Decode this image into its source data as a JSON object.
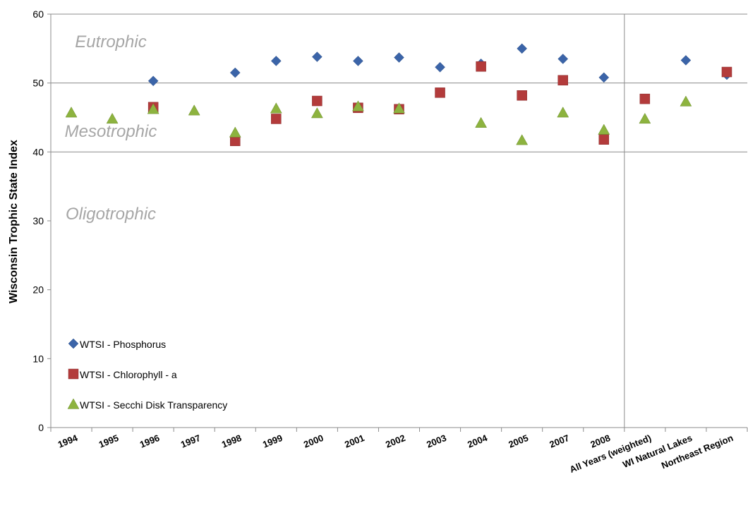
{
  "chart_data": {
    "type": "scatter",
    "ylabel": "Wisconsin Trophic State Index",
    "ylim": [
      0,
      60
    ],
    "yticks": [
      0,
      10,
      20,
      30,
      40,
      50,
      60
    ],
    "grid_lines_y": [
      40,
      50
    ],
    "categories": [
      "1994",
      "1995",
      "1996",
      "1997",
      "1998",
      "1999",
      "2000",
      "2001",
      "2002",
      "2003",
      "2004",
      "2005",
      "2007",
      "2008",
      "All Years (weighted)",
      "WI Natural  Lakes",
      "Northeast Region"
    ],
    "group_divider_after": "2008",
    "zones": [
      {
        "label": "Eutrophic",
        "y": 56
      },
      {
        "label": "Mesotrophic",
        "y": 43
      },
      {
        "label": "Oligotrophic",
        "y": 31
      }
    ],
    "legend_position": "lower-left",
    "series": [
      {
        "name": "WTSI - Phosphorus",
        "marker": "diamond",
        "color": "#3b64a8",
        "values": [
          null,
          null,
          50.3,
          null,
          51.5,
          53.2,
          53.8,
          53.2,
          53.7,
          52.3,
          52.8,
          55.0,
          53.5,
          50.8,
          null,
          53.3,
          51.2
        ]
      },
      {
        "name": "WTSI - Chlorophyll - a",
        "marker": "square",
        "color": "#b33b3b",
        "values": [
          null,
          null,
          46.5,
          null,
          41.6,
          44.8,
          47.4,
          46.4,
          46.2,
          48.6,
          52.4,
          48.2,
          50.4,
          41.8,
          47.7,
          null,
          51.6
        ]
      },
      {
        "name": "WTSI - Secchi Disk Transparency",
        "marker": "triangle",
        "color": "#8db33f",
        "values": [
          45.7,
          44.8,
          46.2,
          46.0,
          42.8,
          46.3,
          45.6,
          46.6,
          46.3,
          null,
          44.2,
          41.7,
          45.7,
          43.2,
          44.8,
          47.3,
          null
        ]
      }
    ]
  }
}
